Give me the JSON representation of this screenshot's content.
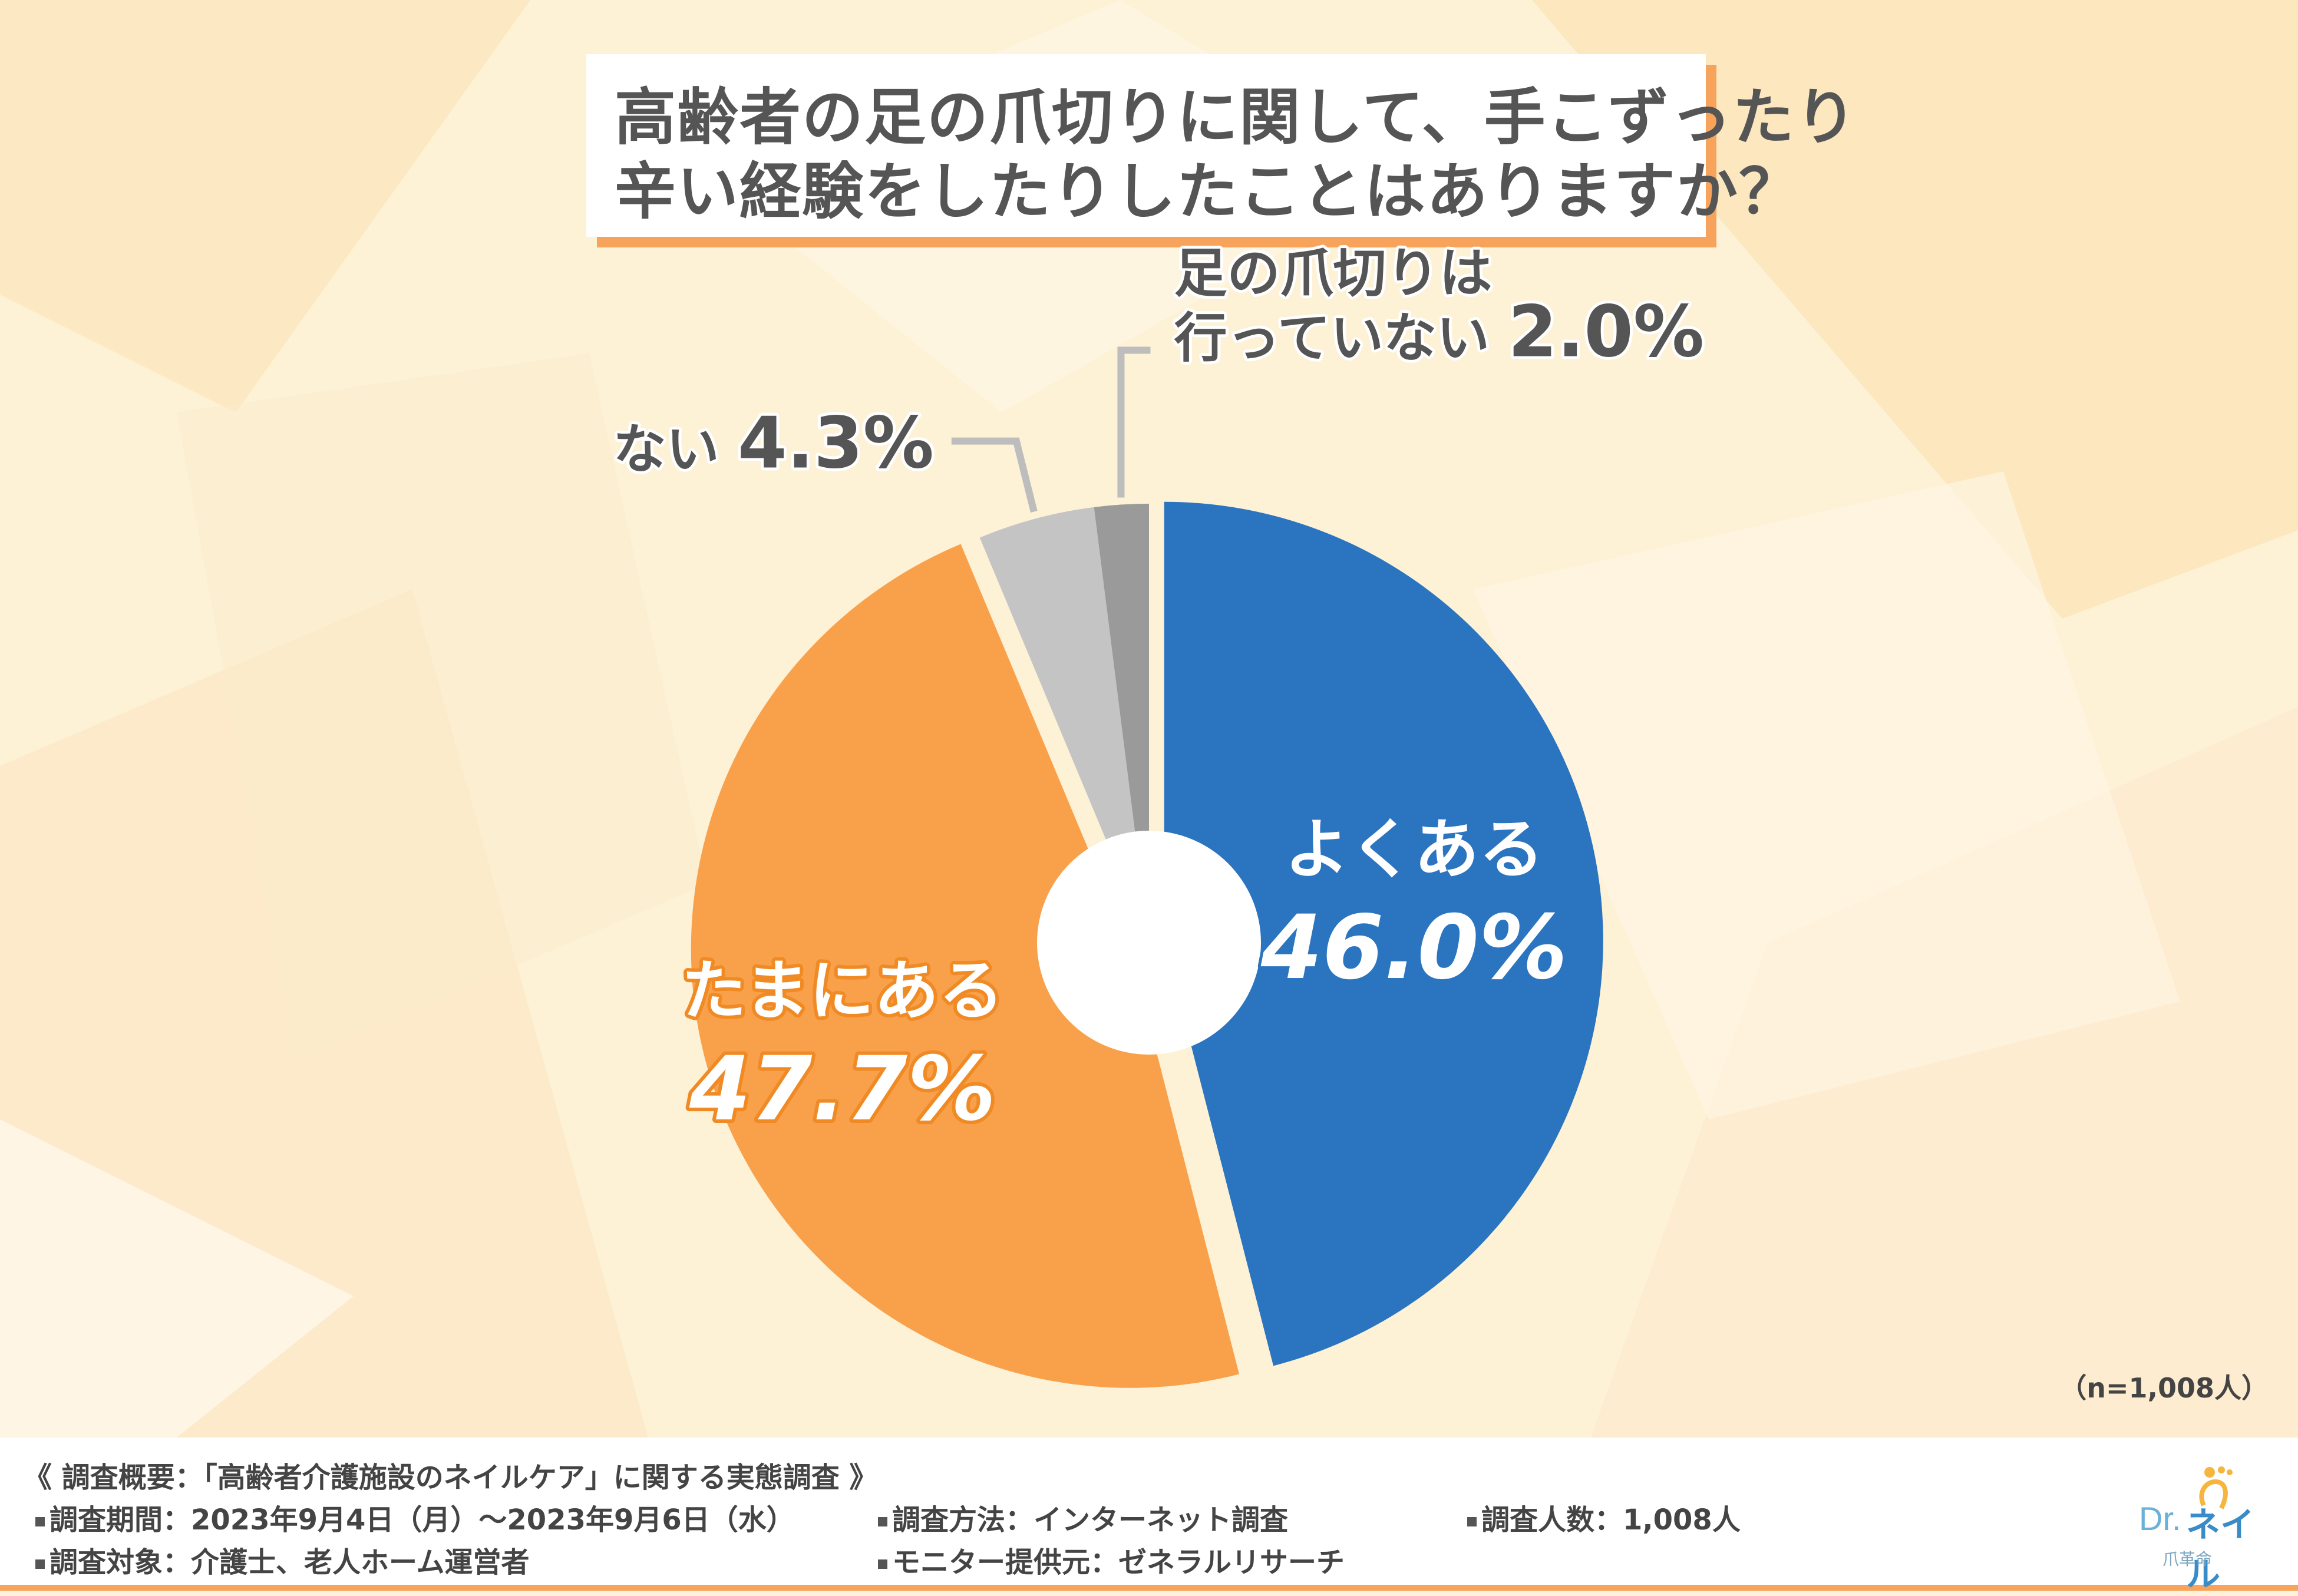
{
  "title": {
    "line1": "高齢者の足の爪切りに関して、手こずったり",
    "line2": "辛い経験をしたりしたことはありますか？"
  },
  "chart_data": {
    "type": "pie",
    "series": [
      {
        "name": "よくある",
        "label_lines": [
          "よくある"
        ],
        "value": 46.0,
        "display": "46.0%",
        "color": "#2b74bf"
      },
      {
        "name": "たまにある",
        "label_lines": [
          "たまにある"
        ],
        "value": 47.7,
        "display": "47.7%",
        "color": "#f9a04a"
      },
      {
        "name": "ない",
        "label_lines": [
          "ない"
        ],
        "value": 4.3,
        "display": "4.3%",
        "color": "#c4c4c4"
      },
      {
        "name": "足の爪切りは行っていない",
        "label_lines": [
          "足の爪切りは",
          "行っていない"
        ],
        "value": 2.0,
        "display": "2.0%",
        "color": "#9a9a9a"
      }
    ],
    "sample_size": "（n=1,008人）"
  },
  "footer": {
    "heading": "《 調査概要：「高齢者介護施設のネイルケア」に関する実態調査 》",
    "period": "調査期間：2023年9月4日（月）～2023年9月6日（水）",
    "method": "調査方法：インターネット調査",
    "count": "調査人数：1,008人",
    "target": "調査対象：介護士、老人ホーム運営者",
    "provider": "モニター提供元：ゼネラルリサーチ"
  },
  "logo": {
    "dr": "Dr.",
    "name": "ネイル",
    "sub": "爪革命"
  },
  "colors": {
    "accent": "#f7a35c",
    "background": "#fdf3dc"
  }
}
